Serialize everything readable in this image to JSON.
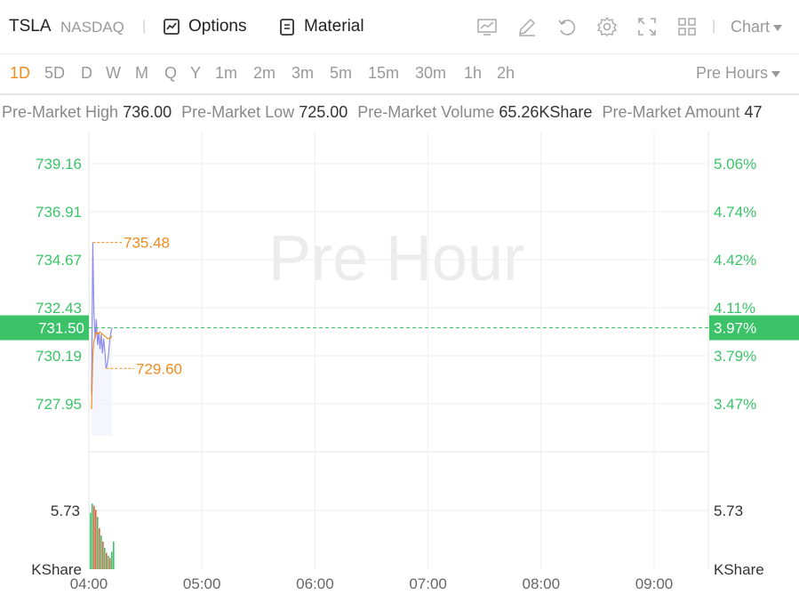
{
  "header": {
    "symbol": "TSLA",
    "exchange": "NASDAQ",
    "options_label": "Options",
    "material_label": "Material",
    "chart_label": "Chart",
    "tools": [
      "line-chart-icon",
      "edit-icon",
      "undo-icon",
      "settings-icon",
      "fullscreen-icon",
      "layout-grid-icon"
    ]
  },
  "timeframes": [
    "1D",
    "5D",
    "D",
    "W",
    "M",
    "Q",
    "Y",
    "1m",
    "2m",
    "3m",
    "5m",
    "15m",
    "30m",
    "1h",
    "2h"
  ],
  "active_timeframe": "1D",
  "session_label": "Pre Hours",
  "stats": [
    {
      "label": "Pre-Market High",
      "value": "736.00"
    },
    {
      "label": "Pre-Market Low",
      "value": "725.00"
    },
    {
      "label": "Pre-Market Volume",
      "value": "65.26KShare"
    },
    {
      "label": "Pre-Market Amount",
      "value": "47"
    }
  ],
  "colors": {
    "up": "#3cc36a",
    "accent": "#f08c1e",
    "price_line": "#8c8cf0",
    "avg_line": "#f08c1e",
    "grid": "#eeeeee"
  },
  "chart_data": {
    "type": "line",
    "watermark": "Pre Hour",
    "price_axis": [
      "739.16",
      "736.91",
      "734.67",
      "732.43",
      "730.19",
      "727.95"
    ],
    "percent_axis": [
      "5.06%",
      "4.74%",
      "4.42%",
      "4.11%",
      "3.79%",
      "3.47%"
    ],
    "current_price": "731.50",
    "current_percent": "3.97%",
    "high_marker": "735.48",
    "low_marker": "729.60",
    "volume_tick": "5.73",
    "volume_unit": "KShare",
    "x_ticks": [
      "04:00",
      "05:00",
      "06:00",
      "07:00",
      "08:00",
      "09:00"
    ],
    "price_series": [
      {
        "t": 0,
        "p": 728.4
      },
      {
        "t": 0.8,
        "p": 735.48
      },
      {
        "t": 1.6,
        "p": 732.2
      },
      {
        "t": 2.4,
        "p": 731.0
      },
      {
        "t": 3.2,
        "p": 731.9
      },
      {
        "t": 4.0,
        "p": 730.7
      },
      {
        "t": 4.8,
        "p": 731.3
      },
      {
        "t": 5.6,
        "p": 730.5
      },
      {
        "t": 6.4,
        "p": 731.2
      },
      {
        "t": 7.2,
        "p": 730.3
      },
      {
        "t": 8.0,
        "p": 731.0
      },
      {
        "t": 8.8,
        "p": 730.4
      },
      {
        "t": 9.6,
        "p": 729.6
      },
      {
        "t": 10.4,
        "p": 729.8
      },
      {
        "t": 11.2,
        "p": 730.2
      },
      {
        "t": 12.0,
        "p": 730.9
      },
      {
        "t": 12.8,
        "p": 731.3
      },
      {
        "t": 13.6,
        "p": 731.5
      }
    ],
    "avg_series": [
      {
        "t": 0,
        "p": 727.7
      },
      {
        "t": 0.8,
        "p": 730.2
      },
      {
        "t": 1.6,
        "p": 730.9
      },
      {
        "t": 2.4,
        "p": 731.1
      },
      {
        "t": 3.2,
        "p": 731.3
      },
      {
        "t": 4.0,
        "p": 731.2
      },
      {
        "t": 5.6,
        "p": 731.3
      },
      {
        "t": 7.2,
        "p": 731.2
      },
      {
        "t": 8.8,
        "p": 731.1
      },
      {
        "t": 10.4,
        "p": 731.0
      },
      {
        "t": 12.0,
        "p": 731.0
      },
      {
        "t": 13.6,
        "p": 731.1
      }
    ],
    "volume": [
      {
        "t": 0,
        "v": 5.5,
        "up": true
      },
      {
        "t": 1,
        "v": 6.4,
        "up": true
      },
      {
        "t": 2,
        "v": 6.2,
        "up": false
      },
      {
        "t": 3,
        "v": 5.8,
        "up": false
      },
      {
        "t": 4,
        "v": 5.1,
        "up": true
      },
      {
        "t": 5,
        "v": 4.0,
        "up": false
      },
      {
        "t": 6,
        "v": 3.3,
        "up": true
      },
      {
        "t": 7,
        "v": 2.7,
        "up": false
      },
      {
        "t": 8,
        "v": 2.1,
        "up": true
      },
      {
        "t": 9,
        "v": 1.6,
        "up": false
      },
      {
        "t": 10,
        "v": 1.3,
        "up": true
      },
      {
        "t": 11,
        "v": 1.1,
        "up": false
      },
      {
        "t": 12,
        "v": 1.7,
        "up": true
      },
      {
        "t": 13,
        "v": 2.7,
        "up": true
      }
    ]
  }
}
